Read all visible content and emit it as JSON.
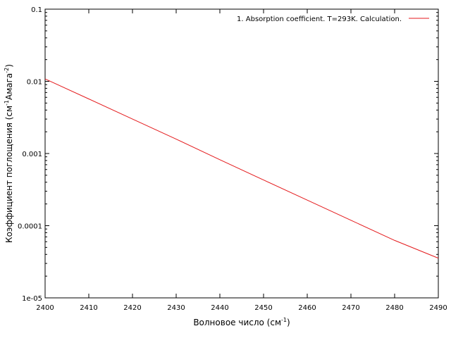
{
  "chart_data": {
    "type": "line",
    "xlabel": "Волновое число (см",
    "xlabel_sup": "-1",
    "xlabel_end": ")",
    "ylabel": "Коэффициент поглощения (см",
    "ylabel_sup1": "-1",
    "ylabel_mid": "Амага",
    "ylabel_sup2": "-2",
    "ylabel_end": ")",
    "xlim": [
      2400,
      2490
    ],
    "ylim": [
      1e-05,
      0.1
    ],
    "yscale": "log",
    "grid": false,
    "legend_position": "top-right",
    "x_ticks": [
      {
        "value": 2400,
        "label": "2400"
      },
      {
        "value": 2410,
        "label": "2410"
      },
      {
        "value": 2420,
        "label": "2420"
      },
      {
        "value": 2430,
        "label": "2430"
      },
      {
        "value": 2440,
        "label": "2440"
      },
      {
        "value": 2450,
        "label": "2450"
      },
      {
        "value": 2460,
        "label": "2460"
      },
      {
        "value": 2470,
        "label": "2470"
      },
      {
        "value": 2480,
        "label": "2480"
      },
      {
        "value": 2490,
        "label": "2490"
      }
    ],
    "y_ticks": [
      {
        "value": 1e-05,
        "label": "1e-05"
      },
      {
        "value": 0.0001,
        "label": "0.0001"
      },
      {
        "value": 0.001,
        "label": "0.001"
      },
      {
        "value": 0.01,
        "label": "0.01"
      },
      {
        "value": 0.1,
        "label": "0.1"
      }
    ],
    "series": [
      {
        "name": "1. Absorption coefficient. T=293K. Calculation.",
        "color": "#e41a1c",
        "x": [
          2400,
          2410,
          2420,
          2430,
          2440,
          2450,
          2460,
          2470,
          2480,
          2490
        ],
        "y": [
          0.0108,
          0.0057,
          0.003,
          0.00158,
          0.00082,
          0.00043,
          0.000226,
          0.000119,
          6.25e-05,
          3.55e-05
        ]
      }
    ]
  }
}
